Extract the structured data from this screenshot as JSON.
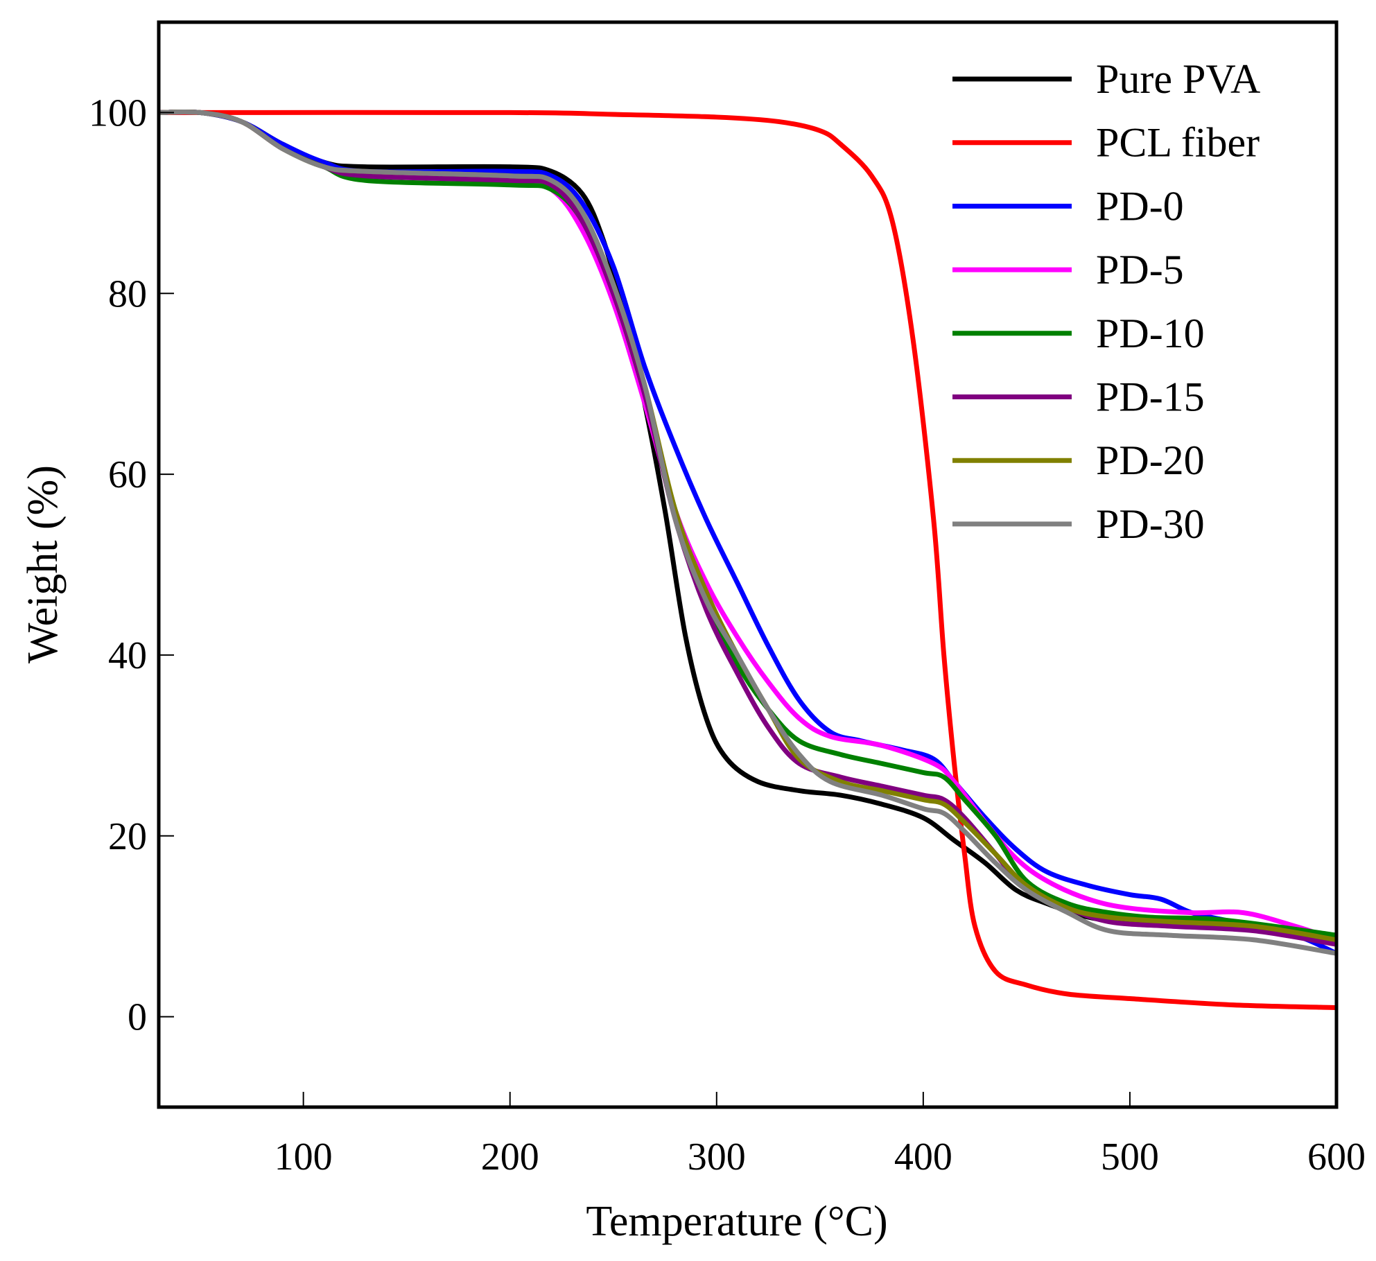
{
  "chart_data": {
    "type": "line",
    "title": "",
    "xlabel": "Temperature (°C)",
    "ylabel": "Weight (%)",
    "xlim": [
      30,
      600
    ],
    "ylim": [
      -10,
      110
    ],
    "xticks": [
      100,
      200,
      300,
      400,
      500,
      600
    ],
    "yticks": [
      0,
      20,
      40,
      60,
      80,
      100
    ],
    "grid": false,
    "legend_position": "top-right",
    "series": [
      {
        "name": "Pure PVA",
        "color": "#000000",
        "points": [
          [
            30,
            100
          ],
          [
            50,
            100
          ],
          [
            70,
            99
          ],
          [
            90,
            96.5
          ],
          [
            110,
            94.5
          ],
          [
            130,
            94
          ],
          [
            200,
            94
          ],
          [
            220,
            93.5
          ],
          [
            235,
            91
          ],
          [
            245,
            86
          ],
          [
            255,
            78
          ],
          [
            265,
            68
          ],
          [
            275,
            56
          ],
          [
            285,
            42
          ],
          [
            295,
            33
          ],
          [
            305,
            28.5
          ],
          [
            320,
            26
          ],
          [
            340,
            25
          ],
          [
            360,
            24.5
          ],
          [
            380,
            23.5
          ],
          [
            400,
            22
          ],
          [
            415,
            19.5
          ],
          [
            430,
            17
          ],
          [
            445,
            14
          ],
          [
            460,
            12.5
          ],
          [
            480,
            11
          ],
          [
            500,
            10.5
          ],
          [
            550,
            10
          ],
          [
            600,
            9
          ]
        ]
      },
      {
        "name": "PCL fiber",
        "color": "#ff0000",
        "points": [
          [
            30,
            100
          ],
          [
            200,
            100
          ],
          [
            250,
            99.8
          ],
          [
            300,
            99.5
          ],
          [
            330,
            99
          ],
          [
            350,
            98
          ],
          [
            360,
            96.5
          ],
          [
            375,
            93
          ],
          [
            385,
            88
          ],
          [
            395,
            75
          ],
          [
            405,
            55
          ],
          [
            410,
            40
          ],
          [
            415,
            28
          ],
          [
            420,
            18
          ],
          [
            425,
            10
          ],
          [
            435,
            5
          ],
          [
            450,
            3.5
          ],
          [
            470,
            2.5
          ],
          [
            500,
            2
          ],
          [
            550,
            1.3
          ],
          [
            600,
            1
          ]
        ]
      },
      {
        "name": "PD-0",
        "color": "#0000ff",
        "points": [
          [
            30,
            100
          ],
          [
            50,
            100
          ],
          [
            70,
            99
          ],
          [
            90,
            96.5
          ],
          [
            110,
            94.5
          ],
          [
            130,
            93.5
          ],
          [
            200,
            93.5
          ],
          [
            220,
            93
          ],
          [
            235,
            90
          ],
          [
            250,
            83
          ],
          [
            265,
            72
          ],
          [
            280,
            63
          ],
          [
            295,
            55
          ],
          [
            310,
            48
          ],
          [
            325,
            41
          ],
          [
            340,
            35
          ],
          [
            355,
            31.5
          ],
          [
            370,
            30.5
          ],
          [
            390,
            29.5
          ],
          [
            405,
            28.5
          ],
          [
            415,
            26
          ],
          [
            430,
            22
          ],
          [
            445,
            18.5
          ],
          [
            460,
            16
          ],
          [
            480,
            14.5
          ],
          [
            500,
            13.5
          ],
          [
            515,
            13
          ],
          [
            530,
            11.5
          ],
          [
            550,
            10.5
          ],
          [
            580,
            9
          ],
          [
            600,
            7
          ]
        ]
      },
      {
        "name": "PD-5",
        "color": "#ff00ff",
        "points": [
          [
            30,
            100
          ],
          [
            50,
            100
          ],
          [
            70,
            99
          ],
          [
            90,
            96
          ],
          [
            110,
            94
          ],
          [
            130,
            93
          ],
          [
            200,
            92.5
          ],
          [
            220,
            91.5
          ],
          [
            235,
            87
          ],
          [
            250,
            79
          ],
          [
            265,
            68
          ],
          [
            280,
            56
          ],
          [
            295,
            48
          ],
          [
            310,
            42
          ],
          [
            325,
            37
          ],
          [
            340,
            33
          ],
          [
            355,
            31
          ],
          [
            380,
            30
          ],
          [
            405,
            28
          ],
          [
            415,
            26
          ],
          [
            430,
            21.5
          ],
          [
            445,
            17.5
          ],
          [
            460,
            15
          ],
          [
            480,
            13
          ],
          [
            500,
            12
          ],
          [
            530,
            11.5
          ],
          [
            555,
            11.5
          ],
          [
            580,
            10
          ],
          [
            600,
            8.5
          ]
        ]
      },
      {
        "name": "PD-10",
        "color": "#008000",
        "points": [
          [
            30,
            100
          ],
          [
            50,
            100
          ],
          [
            70,
            99
          ],
          [
            90,
            96
          ],
          [
            110,
            94
          ],
          [
            130,
            92.5
          ],
          [
            200,
            92
          ],
          [
            220,
            91.5
          ],
          [
            235,
            88
          ],
          [
            250,
            80
          ],
          [
            265,
            69
          ],
          [
            280,
            56
          ],
          [
            295,
            46
          ],
          [
            310,
            39
          ],
          [
            325,
            34
          ],
          [
            340,
            30.5
          ],
          [
            360,
            29
          ],
          [
            380,
            28
          ],
          [
            400,
            27
          ],
          [
            410,
            26.5
          ],
          [
            420,
            24
          ],
          [
            435,
            20
          ],
          [
            450,
            15
          ],
          [
            470,
            12.5
          ],
          [
            490,
            11.5
          ],
          [
            510,
            11
          ],
          [
            540,
            10.8
          ],
          [
            570,
            10
          ],
          [
            600,
            9
          ]
        ]
      },
      {
        "name": "PD-15",
        "color": "#800080",
        "points": [
          [
            30,
            100
          ],
          [
            50,
            100
          ],
          [
            70,
            99
          ],
          [
            90,
            96
          ],
          [
            110,
            94
          ],
          [
            130,
            93
          ],
          [
            200,
            92.5
          ],
          [
            220,
            92
          ],
          [
            235,
            88
          ],
          [
            250,
            80
          ],
          [
            265,
            69
          ],
          [
            280,
            55
          ],
          [
            295,
            45
          ],
          [
            310,
            38
          ],
          [
            325,
            32
          ],
          [
            340,
            28
          ],
          [
            360,
            26.5
          ],
          [
            380,
            25.5
          ],
          [
            400,
            24.5
          ],
          [
            410,
            24
          ],
          [
            420,
            22
          ],
          [
            435,
            18
          ],
          [
            450,
            14
          ],
          [
            470,
            12
          ],
          [
            490,
            10.5
          ],
          [
            520,
            10
          ],
          [
            560,
            9.5
          ],
          [
            600,
            8
          ]
        ]
      },
      {
        "name": "PD-20",
        "color": "#808000",
        "points": [
          [
            30,
            100
          ],
          [
            50,
            100
          ],
          [
            70,
            99
          ],
          [
            90,
            96
          ],
          [
            110,
            94
          ],
          [
            130,
            93.5
          ],
          [
            200,
            93
          ],
          [
            220,
            92.5
          ],
          [
            235,
            89
          ],
          [
            250,
            81
          ],
          [
            265,
            70
          ],
          [
            280,
            56
          ],
          [
            295,
            47
          ],
          [
            310,
            40
          ],
          [
            325,
            34
          ],
          [
            340,
            28.5
          ],
          [
            360,
            26
          ],
          [
            380,
            25
          ],
          [
            400,
            24
          ],
          [
            410,
            23.5
          ],
          [
            420,
            21.5
          ],
          [
            435,
            18
          ],
          [
            450,
            14.5
          ],
          [
            470,
            12
          ],
          [
            490,
            11
          ],
          [
            520,
            10.5
          ],
          [
            560,
            10
          ],
          [
            600,
            8.5
          ]
        ]
      },
      {
        "name": "PD-30",
        "color": "#808080",
        "points": [
          [
            30,
            100
          ],
          [
            50,
            100
          ],
          [
            70,
            99
          ],
          [
            90,
            96
          ],
          [
            110,
            94
          ],
          [
            130,
            93.5
          ],
          [
            200,
            93
          ],
          [
            220,
            92.5
          ],
          [
            235,
            89
          ],
          [
            250,
            81
          ],
          [
            265,
            70
          ],
          [
            280,
            55
          ],
          [
            295,
            46
          ],
          [
            310,
            40
          ],
          [
            325,
            34
          ],
          [
            340,
            29
          ],
          [
            355,
            26
          ],
          [
            380,
            24.5
          ],
          [
            400,
            23
          ],
          [
            410,
            22.5
          ],
          [
            420,
            20.5
          ],
          [
            435,
            17
          ],
          [
            450,
            14
          ],
          [
            470,
            11.5
          ],
          [
            490,
            9.5
          ],
          [
            520,
            9
          ],
          [
            560,
            8.5
          ],
          [
            600,
            7
          ]
        ]
      }
    ]
  }
}
